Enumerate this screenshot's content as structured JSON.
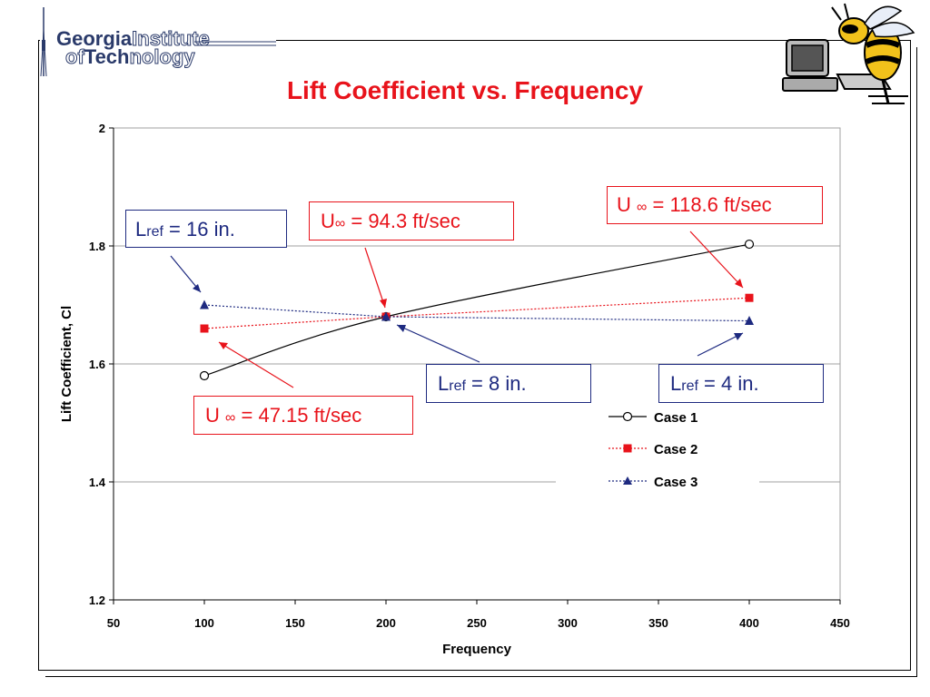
{
  "logo": {
    "line1_bold": "Georgia",
    "line1_outline": "Institute",
    "line2_outline": "of",
    "line2_bold": "Tech",
    "line2_outline_end": "nology"
  },
  "chart_data": {
    "type": "line",
    "title": "Lift Coefficient vs. Frequency",
    "xlabel": "Frequency",
    "ylabel": "Lift Coefficient, Cl",
    "xlim": [
      50,
      450
    ],
    "ylim": [
      1.2,
      2
    ],
    "xticks": [
      50,
      100,
      150,
      200,
      250,
      300,
      350,
      400,
      450
    ],
    "yticks": [
      1.2,
      1.4,
      1.6,
      1.8,
      2
    ],
    "grid": "horizontal",
    "legend_position": "bottom-right",
    "series": [
      {
        "name": "Case 1",
        "x": [
          100,
          200,
          400
        ],
        "y": [
          1.58,
          1.68,
          1.803
        ],
        "color": "#000000",
        "marker": "circle-open",
        "line": "solid-curve"
      },
      {
        "name": "Case 2",
        "x": [
          100,
          200,
          400
        ],
        "y": [
          1.66,
          1.68,
          1.712
        ],
        "color": "#e8131b",
        "marker": "square",
        "line": "dotted"
      },
      {
        "name": "Case 3",
        "x": [
          100,
          200,
          400
        ],
        "y": [
          1.7,
          1.68,
          1.673
        ],
        "color": "#1e2a80",
        "marker": "triangle",
        "line": "dotted"
      }
    ],
    "annotations": [
      {
        "id": "lref16",
        "main": "L",
        "sub": "ref",
        "rest": " = 16 in.",
        "color": "#1e2a80"
      },
      {
        "id": "u94",
        "main": "U",
        "sub": "∞",
        "rest": " = 94.3 ft/sec",
        "color": "#e8131b"
      },
      {
        "id": "u118",
        "main": "U ",
        "sub": "∞",
        "rest": " = 118.6 ft/sec",
        "color": "#e8131b"
      },
      {
        "id": "lref8",
        "main": "L",
        "sub": "ref",
        "rest": " = 8 in.",
        "color": "#1e2a80"
      },
      {
        "id": "lref4",
        "main": "L",
        "sub": "ref",
        "rest": " = 4 in.",
        "color": "#1e2a80"
      },
      {
        "id": "u47",
        "main": "U ",
        "sub": "∞",
        "rest": " = 47.15 ft/sec",
        "color": "#e8131b"
      }
    ]
  }
}
